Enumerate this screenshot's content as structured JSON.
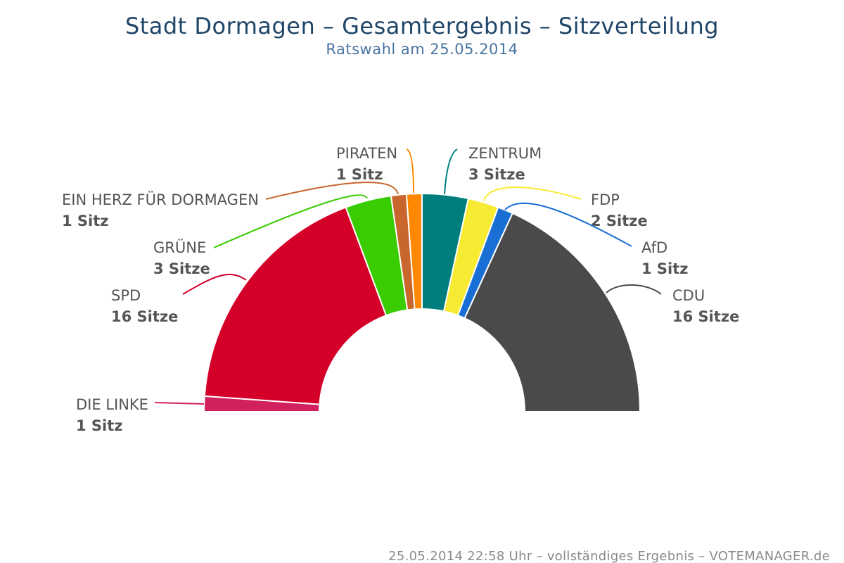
{
  "header": {
    "title": "Stadt Dormagen – Gesamtergebnis – Sitzverteilung",
    "subtitle": "Ratswahl am 25.05.2014"
  },
  "footer": {
    "text": "25.05.2014 22:58 Uhr – vollständiges Ergebnis – VOTEMANAGER.de"
  },
  "chart_data": {
    "type": "pie",
    "variant": "semicircle-donut",
    "unit": "Sitze",
    "series": [
      {
        "party": "DIE LINKE",
        "seats": 1,
        "label": "1 Sitz",
        "color": "#d0215e"
      },
      {
        "party": "SPD",
        "seats": 16,
        "label": "16 Sitze",
        "color": "#d4002a"
      },
      {
        "party": "GRÜNE",
        "seats": 3,
        "label": "3 Sitze",
        "color": "#39cc00"
      },
      {
        "party": "EIN HERZ FÜR DORMAGEN",
        "seats": 1,
        "label": "1 Sitz",
        "color": "#c8662e"
      },
      {
        "party": "PIRATEN",
        "seats": 1,
        "label": "1 Sitz",
        "color": "#ff8800"
      },
      {
        "party": "ZENTRUM",
        "seats": 3,
        "label": "3 Sitze",
        "color": "#007e7e"
      },
      {
        "party": "FDP",
        "seats": 2,
        "label": "2 Sitze",
        "color": "#f7ea32"
      },
      {
        "party": "AfD",
        "seats": 1,
        "label": "1 Sitz",
        "color": "#1a6fd4"
      },
      {
        "party": "CDU",
        "seats": 16,
        "label": "16 Sitze",
        "color": "#4a4a4a"
      }
    ]
  }
}
